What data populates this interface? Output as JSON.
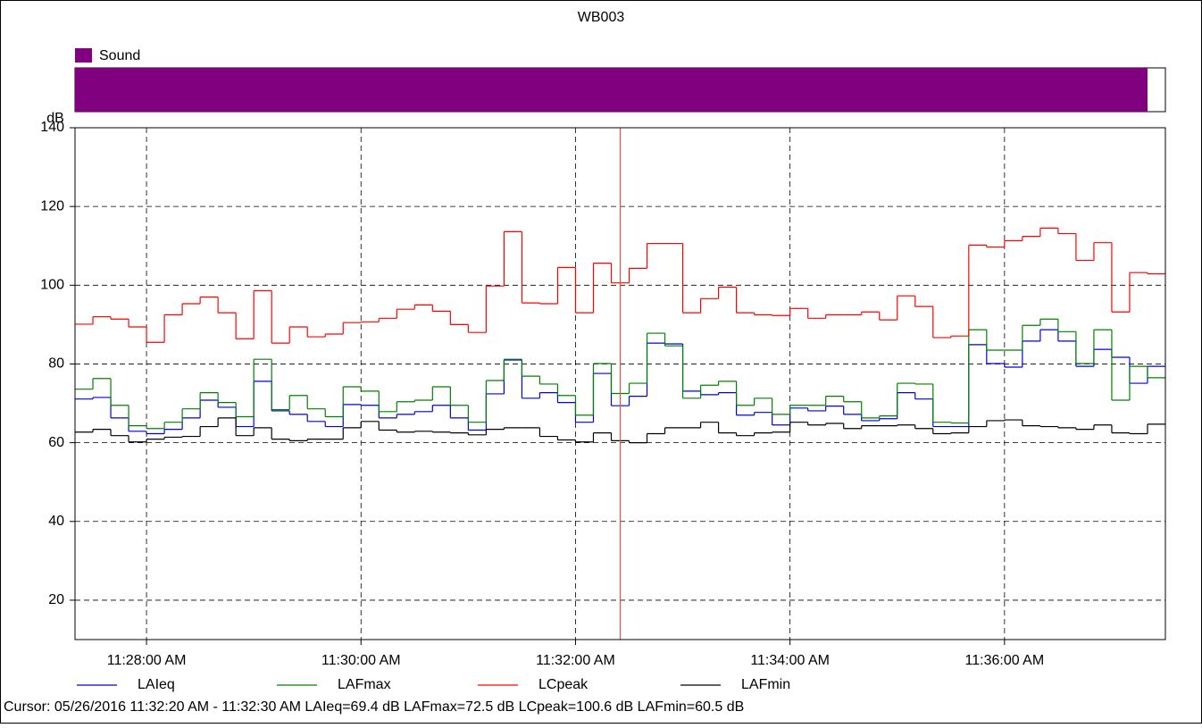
{
  "chart_data": {
    "type": "step",
    "title": "WB003",
    "y_label": "dB",
    "ylim": [
      10,
      140
    ],
    "yticks": [
      20,
      40,
      60,
      80,
      100,
      120,
      140
    ],
    "xlim": [
      "11:27:20 AM",
      "11:37:30 AM"
    ],
    "xticks": [
      "11:28:00 AM",
      "11:30:00 AM",
      "11:32:00 AM",
      "11:34:00 AM",
      "11:36:00 AM"
    ],
    "interval_seconds": 10,
    "grid": true,
    "legend": "bottom",
    "events": [
      {
        "name": "Sound",
        "color": "#800080",
        "start": "11:27:20 AM",
        "end": "11:37:20 AM"
      }
    ],
    "cursor": {
      "color": "#e05050",
      "start": "11:32:20 AM",
      "end": "11:32:30 AM",
      "label": "Cursor: 05/26/2016 11:32:20 AM - 11:32:30 AM  LAIeq=69.4 dB  LAFmax=72.5 dB  LCpeak=100.6 dB  LAFmin=60.5 dB"
    },
    "x": [
      "11:27:20 AM",
      "11:27:30 AM",
      "11:27:40 AM",
      "11:27:50 AM",
      "11:28:00 AM",
      "11:28:10 AM",
      "11:28:20 AM",
      "11:28:30 AM",
      "11:28:40 AM",
      "11:28:50 AM",
      "11:29:00 AM",
      "11:29:10 AM",
      "11:29:20 AM",
      "11:29:30 AM",
      "11:29:40 AM",
      "11:29:50 AM",
      "11:30:00 AM",
      "11:30:10 AM",
      "11:30:20 AM",
      "11:30:30 AM",
      "11:30:40 AM",
      "11:30:50 AM",
      "11:31:00 AM",
      "11:31:10 AM",
      "11:31:20 AM",
      "11:31:30 AM",
      "11:31:40 AM",
      "11:31:50 AM",
      "11:32:00 AM",
      "11:32:10 AM",
      "11:32:20 AM",
      "11:32:30 AM",
      "11:32:40 AM",
      "11:32:50 AM",
      "11:33:00 AM",
      "11:33:10 AM",
      "11:33:20 AM",
      "11:33:30 AM",
      "11:33:40 AM",
      "11:33:50 AM",
      "11:34:00 AM",
      "11:34:10 AM",
      "11:34:20 AM",
      "11:34:30 AM",
      "11:34:40 AM",
      "11:34:50 AM",
      "11:35:00 AM",
      "11:35:10 AM",
      "11:35:20 AM",
      "11:35:30 AM",
      "11:35:40 AM",
      "11:35:50 AM",
      "11:36:00 AM",
      "11:36:10 AM",
      "11:36:20 AM",
      "11:36:30 AM",
      "11:36:40 AM",
      "11:36:50 AM",
      "11:37:00 AM",
      "11:37:10 AM",
      "11:37:20 AM"
    ],
    "series": [
      {
        "name": "LAIeq",
        "color": "#0000e0",
        "values": [
          71.1,
          71.5,
          66.3,
          62.9,
          62.3,
          63.4,
          66.3,
          70.8,
          69,
          64.1,
          75.6,
          68.1,
          67.2,
          65.4,
          64.1,
          69.7,
          69.5,
          66.3,
          67.2,
          67.9,
          69.5,
          66.3,
          63.2,
          72.4,
          81,
          71.3,
          72.7,
          70.2,
          65.2,
          77.6,
          69.4,
          71.8,
          85.3,
          85.1,
          73.1,
          72.2,
          72.7,
          67,
          67.7,
          64.5,
          68.8,
          68.1,
          69.3,
          67.2,
          65.6,
          66.1,
          72.7,
          71.1,
          64.1,
          64.1,
          84.9,
          80.1,
          79.2,
          85.8,
          88.7,
          85.8,
          79.4,
          83.7,
          81.7,
          75.1,
          79.4
        ]
      },
      {
        "name": "LAFmax",
        "color": "#008000",
        "values": [
          73.6,
          76.3,
          69.5,
          64.3,
          63.6,
          65.2,
          68.6,
          72.7,
          70.2,
          66.6,
          81.2,
          68.4,
          72,
          68.6,
          66.6,
          74.2,
          73.1,
          67.9,
          70.4,
          70.8,
          74.2,
          69.5,
          65.2,
          75.8,
          81.2,
          76.9,
          74.9,
          72,
          67,
          80.1,
          72.5,
          75.1,
          87.8,
          84.6,
          71.3,
          74.6,
          75.6,
          69.5,
          71.3,
          67.2,
          69.5,
          69.5,
          71.8,
          70.4,
          66.3,
          66.8,
          75.1,
          74.9,
          65.2,
          65,
          88.7,
          83.5,
          83.5,
          89.8,
          91.4,
          88.2,
          80.1,
          88.7,
          70.8,
          79.4,
          76.5
        ]
      },
      {
        "name": "LCpeak",
        "color": "#ff0000",
        "values": [
          90.1,
          92,
          91.4,
          89.4,
          85.5,
          92.5,
          95.3,
          97,
          93,
          86.4,
          98.6,
          85.3,
          89.4,
          86.9,
          87.6,
          90.5,
          90.7,
          91.6,
          93.9,
          95,
          93.4,
          90,
          88,
          99.8,
          113.6,
          95.5,
          95.3,
          104.5,
          93,
          105.6,
          100.6,
          104.3,
          110.6,
          110.6,
          93,
          96.6,
          99.5,
          93,
          92.5,
          92.3,
          94.1,
          91.6,
          92.5,
          92.5,
          93.2,
          91.2,
          97.3,
          94.6,
          86.7,
          87.1,
          110.2,
          109.7,
          111.3,
          112.4,
          114.5,
          113.1,
          106.3,
          110.8,
          93.2,
          103.2,
          102.9
        ]
      },
      {
        "name": "LAFmin",
        "color": "#000000",
        "values": [
          62.7,
          63.4,
          61.8,
          60.2,
          60.9,
          61.4,
          61.6,
          64.1,
          66.3,
          61.8,
          63.8,
          60.9,
          60.5,
          60.9,
          60.9,
          63.8,
          65.4,
          63.2,
          62.7,
          62.9,
          62.7,
          62.5,
          62,
          63.4,
          63.8,
          63.8,
          61.6,
          60.7,
          60.2,
          62.5,
          60.5,
          60,
          62.3,
          63.8,
          63.8,
          65.2,
          62.5,
          61.8,
          62.5,
          62.7,
          65.2,
          64.5,
          64.9,
          63.6,
          64.3,
          64.3,
          64.5,
          63.6,
          62.3,
          62.5,
          64.1,
          65.6,
          65.8,
          64.3,
          64.1,
          63.8,
          63.4,
          64.5,
          62.5,
          62.3,
          64.7
        ]
      }
    ]
  }
}
